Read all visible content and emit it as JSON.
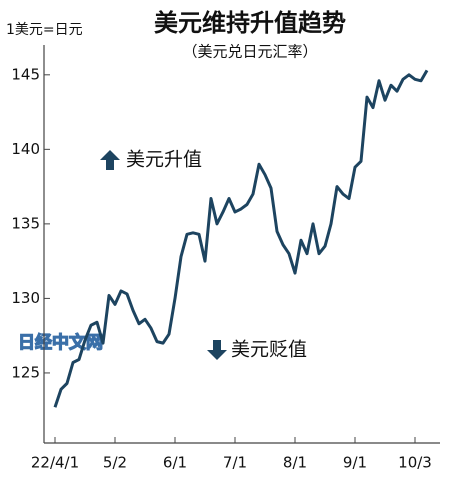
{
  "chart_data": {
    "type": "line",
    "title": "美元维持升值趋势",
    "subtitle": "（美元兑日元汇率）",
    "y_label": "1美元=日元",
    "annotations": [
      "美元升值",
      "美元贬值"
    ],
    "watermark": "日经中文网",
    "categories": [
      "22/4/1",
      null,
      null,
      null,
      null,
      null,
      null,
      null,
      null,
      null,
      "5/2",
      null,
      null,
      null,
      null,
      null,
      null,
      null,
      null,
      null,
      "6/1",
      null,
      null,
      null,
      null,
      null,
      null,
      null,
      null,
      null,
      "7/1",
      null,
      null,
      null,
      null,
      null,
      null,
      null,
      null,
      null,
      "8/1",
      null,
      null,
      null,
      null,
      null,
      null,
      null,
      null,
      null,
      "9/1",
      null,
      null,
      null,
      null,
      null,
      null,
      null,
      null,
      null,
      "10/3",
      null,
      null
    ],
    "series": [
      {
        "color": "#1d4460",
        "values": [
          122.7,
          123.9,
          124.3,
          125.7,
          125.9,
          127.2,
          128.2,
          128.4,
          127.0,
          130.2,
          129.6,
          130.5,
          130.3,
          129.2,
          128.3,
          128.6,
          128.0,
          127.1,
          127.0,
          127.6,
          130.0,
          132.8,
          134.3,
          134.4,
          134.3,
          132.5,
          136.7,
          135.0,
          135.8,
          136.7,
          135.8,
          136.0,
          136.3,
          137.0,
          139.0,
          138.3,
          137.4,
          134.5,
          133.6,
          133.0,
          131.7,
          133.9,
          133.0,
          135.0,
          133.0,
          133.5,
          135.0,
          137.5,
          137.0,
          136.7,
          138.8,
          139.2,
          143.5,
          142.8,
          144.6,
          143.3,
          144.3,
          143.9,
          144.7,
          145.0,
          144.7,
          144.6,
          145.3
        ]
      }
    ],
    "ylim": [
      120.3,
      147
    ],
    "yticks": [
      125,
      130,
      135,
      140,
      145
    ]
  }
}
